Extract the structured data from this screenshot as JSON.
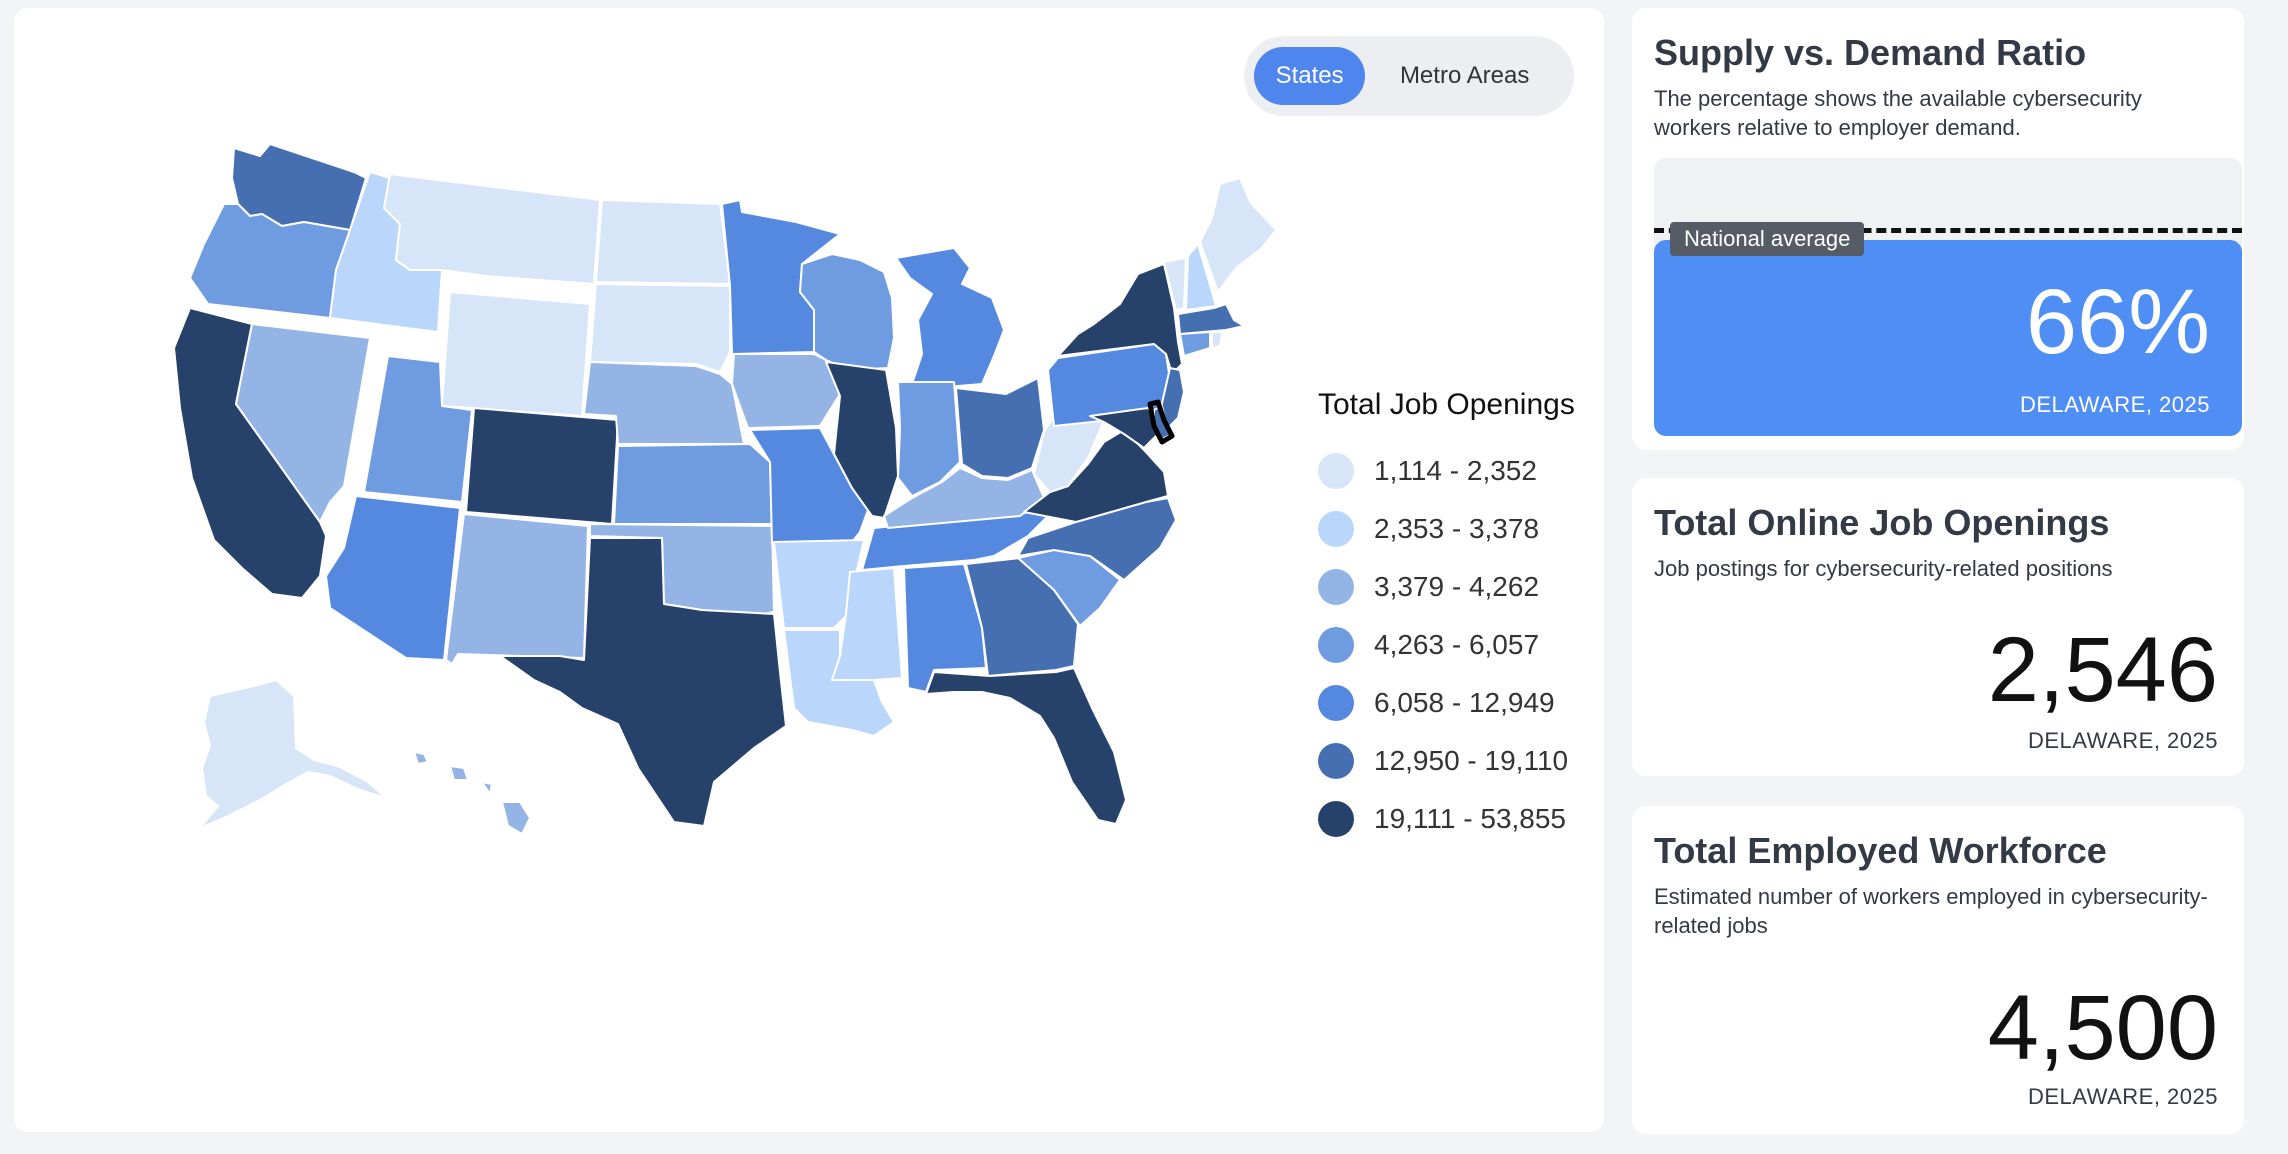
{
  "toggle": {
    "states_label": "States",
    "metro_label": "Metro Areas",
    "selected": "States"
  },
  "legend": {
    "title": "Total Job Openings",
    "items": [
      {
        "label": "1,114 - 2,352",
        "color": "#d6e5f8"
      },
      {
        "label": "2,353 - 3,378",
        "color": "#bad6fb"
      },
      {
        "label": "3,379 - 4,262",
        "color": "#93b4e4"
      },
      {
        "label": "4,263 - 6,057",
        "color": "#6f9ce0"
      },
      {
        "label": "6,058 - 12,949",
        "color": "#5589df"
      },
      {
        "label": "12,950 - 19,110",
        "color": "#456fb1"
      },
      {
        "label": "19,111 - 53,855",
        "color": "#27426a"
      }
    ]
  },
  "highlighted_state": "Delaware",
  "ratio": {
    "title": "Supply vs. Demand Ratio",
    "description": "The percentage shows the available cybersecurity workers relative to employer demand.",
    "marker_label": "National average",
    "value": "66%",
    "caption": "DELAWARE, 2025"
  },
  "openings": {
    "title": "Total Online Job Openings",
    "description": "Job postings for cybersecurity-related positions",
    "value": "2,546",
    "caption": "DELAWARE, 2025"
  },
  "workforce": {
    "title": "Total Employed Workforce",
    "description": "Estimated number of workers employed in cybersecurity-related jobs",
    "value": "4,500",
    "caption": "DELAWARE, 2025"
  }
}
